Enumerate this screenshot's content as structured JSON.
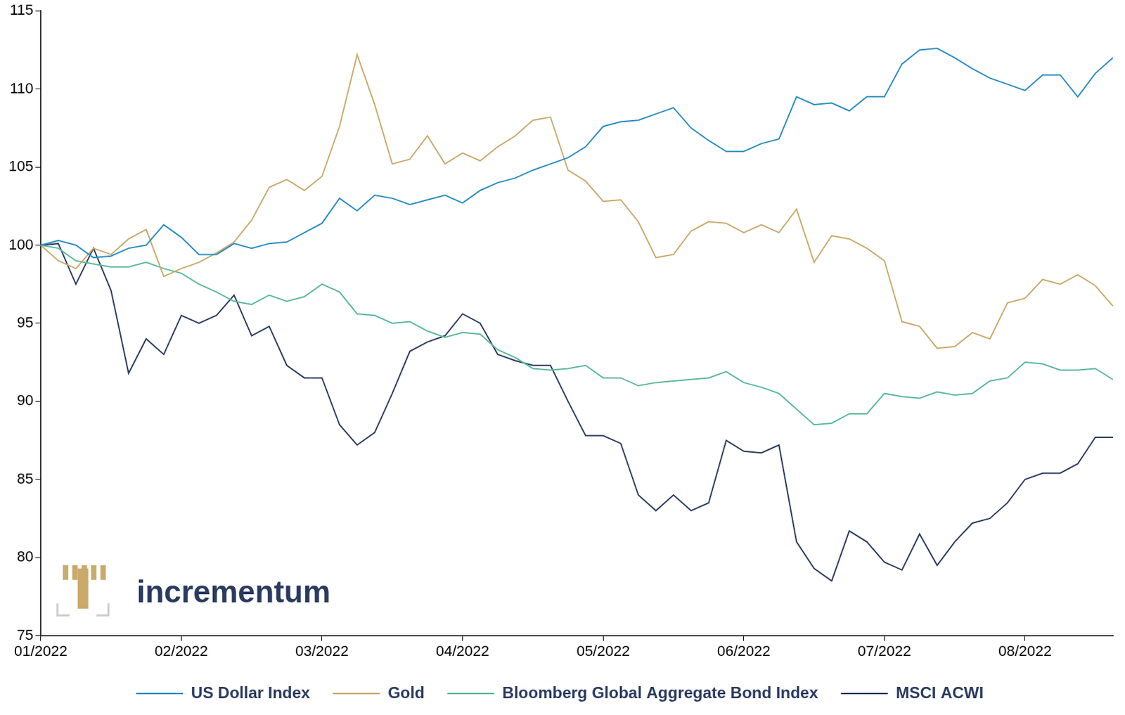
{
  "chart_data": {
    "type": "line",
    "categories": [
      "01/2022",
      null,
      null,
      null,
      null,
      null,
      null,
      null,
      "02/2022",
      null,
      null,
      null,
      null,
      null,
      null,
      null,
      "03/2022",
      null,
      null,
      null,
      null,
      null,
      null,
      null,
      "04/2022",
      null,
      null,
      null,
      null,
      null,
      null,
      null,
      "05/2022",
      null,
      null,
      null,
      null,
      null,
      null,
      null,
      "06/2022",
      null,
      null,
      null,
      null,
      null,
      null,
      null,
      "07/2022",
      null,
      null,
      null,
      null,
      null,
      null,
      null,
      "08/2022",
      null,
      null,
      null,
      null,
      null
    ],
    "series": [
      {
        "name": "US Dollar Index",
        "color": "#2a8cc2",
        "values": [
          100,
          100.3,
          100.0,
          99.2,
          99.3,
          99.8,
          100.0,
          101.3,
          100.5,
          99.4,
          99.4,
          100.1,
          99.8,
          100.1,
          100.2,
          100.8,
          101.4,
          103.0,
          102.2,
          103.2,
          103.0,
          102.6,
          102.9,
          103.2,
          102.7,
          103.5,
          104.0,
          104.3,
          104.8,
          105.2,
          105.6,
          106.3,
          107.6,
          107.9,
          108.0,
          108.4,
          108.8,
          107.5,
          106.7,
          106.0,
          106.0,
          106.5,
          106.8,
          109.5,
          109.0,
          109.1,
          108.6,
          109.5,
          109.5,
          111.6,
          112.5,
          112.6,
          112.0,
          111.3,
          110.7,
          110.3,
          109.9,
          110.9,
          110.9,
          109.5,
          111.0,
          112.0
        ]
      },
      {
        "name": "Gold",
        "color": "#c9aa6b",
        "values": [
          100,
          99.0,
          98.5,
          99.8,
          99.4,
          100.4,
          101.0,
          98.0,
          98.5,
          98.9,
          99.5,
          100.2,
          101.6,
          103.7,
          104.2,
          103.5,
          104.4,
          107.6,
          112.2,
          109.0,
          105.2,
          105.5,
          107.0,
          105.2,
          105.9,
          105.4,
          106.3,
          107.0,
          108.0,
          108.2,
          104.8,
          104.1,
          102.8,
          102.9,
          101.5,
          99.2,
          99.4,
          100.9,
          101.5,
          101.4,
          100.8,
          101.3,
          100.8,
          102.3,
          98.9,
          100.6,
          100.4,
          99.8,
          99.0,
          95.1,
          94.8,
          93.4,
          93.5,
          94.4,
          94.0,
          96.3,
          96.6,
          97.8,
          97.5,
          98.1,
          97.4,
          96.1
        ]
      },
      {
        "name": "Bloomberg Global Aggregate Bond Index",
        "color": "#5bb99b",
        "values": [
          100,
          99.8,
          99.0,
          98.8,
          98.6,
          98.6,
          98.9,
          98.5,
          98.2,
          97.5,
          97.0,
          96.4,
          96.2,
          96.8,
          96.4,
          96.7,
          97.5,
          97.0,
          95.6,
          95.5,
          95.0,
          95.1,
          94.5,
          94.1,
          94.4,
          94.3,
          93.3,
          92.8,
          92.1,
          92.0,
          92.1,
          92.3,
          91.5,
          91.5,
          91.0,
          91.2,
          91.3,
          91.4,
          91.5,
          91.9,
          91.2,
          90.9,
          90.5,
          89.5,
          88.5,
          88.6,
          89.2,
          89.2,
          90.5,
          90.3,
          90.2,
          90.6,
          90.4,
          90.5,
          91.3,
          91.5,
          92.5,
          92.4,
          92.0,
          92.0,
          92.1,
          91.4
        ]
      },
      {
        "name": "MSCI ACWI",
        "color": "#2b3b60",
        "values": [
          100,
          100.1,
          97.5,
          99.8,
          97.1,
          91.8,
          94.0,
          93.0,
          95.5,
          95.0,
          95.5,
          96.8,
          94.2,
          94.8,
          92.3,
          91.5,
          91.5,
          88.5,
          87.2,
          88.0,
          90.5,
          93.2,
          93.8,
          94.2,
          95.6,
          95.0,
          93.0,
          92.6,
          92.3,
          92.3,
          90.0,
          87.8,
          87.8,
          87.3,
          84.0,
          83.0,
          84.0,
          83.0,
          83.5,
          87.5,
          86.8,
          86.7,
          87.2,
          81.0,
          79.3,
          78.5,
          81.7,
          81.0,
          79.7,
          79.2,
          81.5,
          79.5,
          81.0,
          82.2,
          82.5,
          83.5,
          85.0,
          85.4,
          85.4,
          86.0,
          87.7,
          87.7
        ]
      }
    ],
    "ylim": [
      75,
      115
    ],
    "yticks": [
      75,
      80,
      85,
      90,
      95,
      100,
      105,
      110,
      115
    ],
    "grid": false,
    "legend": "bottom",
    "annotations": [
      "incrementum"
    ]
  }
}
